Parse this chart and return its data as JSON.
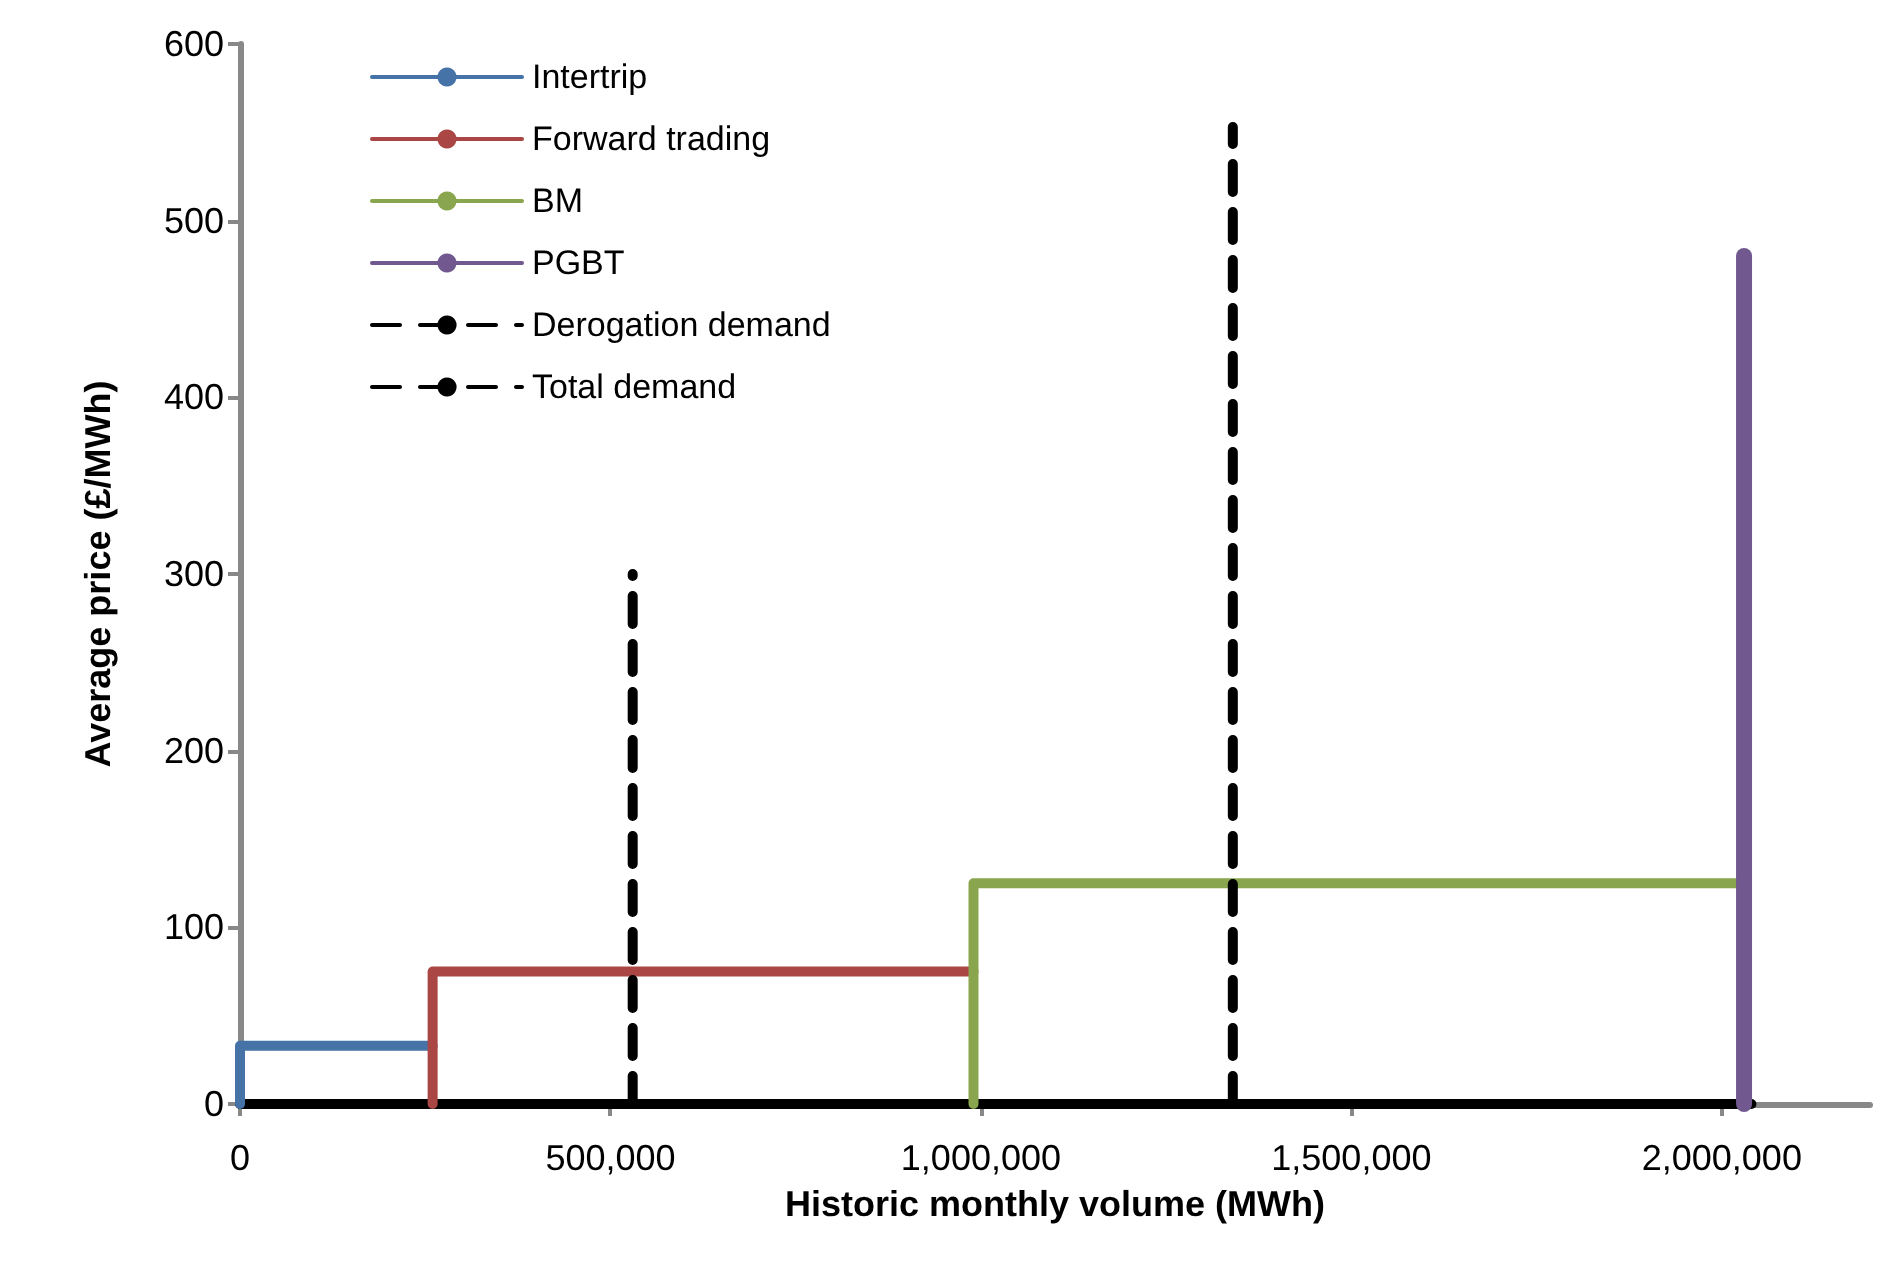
{
  "chart_data": {
    "type": "line",
    "xlabel": "Historic monthly volume (MWh)",
    "ylabel": "Average price (£/MWh)",
    "xlim": [
      0,
      2200000
    ],
    "xticks": [
      {
        "value": 0,
        "label": "0"
      },
      {
        "value": 500000,
        "label": "500,000"
      },
      {
        "value": 1000000,
        "label": "1,000,000"
      },
      {
        "value": 1500000,
        "label": "1,500,000"
      },
      {
        "value": 2000000,
        "label": "2,000,000"
      }
    ],
    "ylim": [
      0,
      600
    ],
    "yticks": [
      0,
      100,
      200,
      300,
      400,
      500,
      600
    ],
    "grid": false,
    "legend": "top left",
    "marker": "none",
    "series": [
      {
        "name": "Intertrip",
        "color": "#4572a7",
        "x": [
          0,
          0,
          260000
        ],
        "values": [
          0,
          33,
          33
        ],
        "line_style": "solid"
      },
      {
        "name": "Forward trading",
        "color": "#aa4643",
        "x": [
          260000,
          260000,
          990000
        ],
        "values": [
          0,
          75,
          75
        ],
        "line_style": "solid"
      },
      {
        "name": "BM",
        "color": "#89a54e",
        "x": [
          990000,
          990000,
          2020000
        ],
        "values": [
          0,
          125,
          125
        ],
        "line_style": "solid"
      },
      {
        "name": "PGBT",
        "color": "#71588f",
        "x": [
          2030000,
          2030000
        ],
        "values": [
          0,
          480
        ],
        "line_style": "solid"
      },
      {
        "name": "Derogation demand",
        "color": "#000000",
        "x": [
          530000,
          530000
        ],
        "values": [
          0,
          300
        ],
        "line_style": "dashed"
      },
      {
        "name": "Total demand",
        "color": "#000000",
        "x": [
          1340000,
          1340000
        ],
        "values": [
          0,
          553
        ],
        "line_style": "dashed"
      },
      {
        "color": "#000000",
        "x": [
          0,
          2040000
        ],
        "values": [
          0,
          0
        ],
        "line_style": "solid"
      }
    ]
  }
}
